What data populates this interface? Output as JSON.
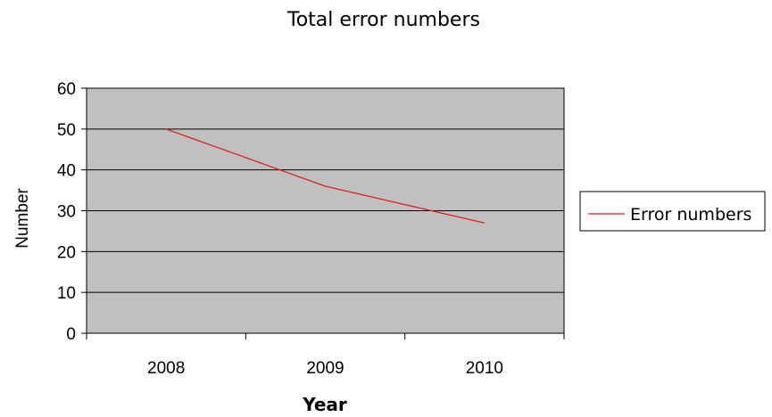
{
  "chart_data": {
    "type": "line",
    "title": "Total error numbers",
    "xlabel": "Year",
    "ylabel": "Number",
    "categories": [
      "2008",
      "2009",
      "2010"
    ],
    "series": [
      {
        "name": "Error numbers",
        "values": [
          50,
          36,
          27
        ],
        "color": "#dd2222"
      }
    ],
    "ylim": [
      0,
      60
    ],
    "yticks": [
      0,
      10,
      20,
      30,
      40,
      50,
      60
    ],
    "grid": true,
    "legend": "right",
    "plot_background": "#c0c0c0"
  }
}
